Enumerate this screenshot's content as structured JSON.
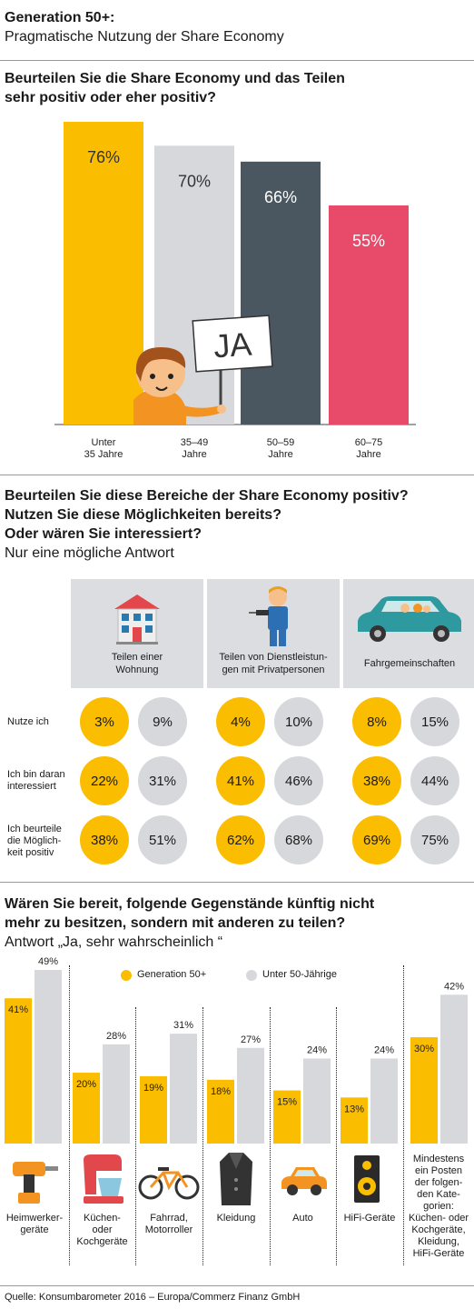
{
  "header": {
    "title": "Generation 50+:",
    "subtitle": "Pragmatische Nutzung der Share Economy"
  },
  "section1": {
    "question_line1": "Beurteilen Sie die Share Economy und das Teilen",
    "question_line2": "sehr positiv oder eher positiv?",
    "sign_text": "JA"
  },
  "section2": {
    "question_line1": "Beurteilen Sie diese Bereiche der Share Economy positiv?",
    "question_line2": "Nutzen Sie diese Möglichkeiten bereits?",
    "question_line3": "Oder wären Sie interessiert?",
    "note": "Nur eine mögliche Antwort",
    "categories": [
      {
        "line1": "Teilen einer",
        "line2": "Wohnung"
      },
      {
        "line1": "Teilen von Dienstleistun-",
        "line2": "gen mit Privatpersonen"
      },
      {
        "line1": "Fahrgemeinschaften",
        "line2": ""
      }
    ],
    "rows": [
      {
        "line1": "Nutze ich",
        "line2": "",
        "line3": ""
      },
      {
        "line1": "Ich bin daran",
        "line2": "interessiert",
        "line3": ""
      },
      {
        "line1": "Ich beurteile",
        "line2": "die Möglich-",
        "line3": "keit positiv"
      }
    ],
    "values": [
      [
        [
          "3%",
          "9%"
        ],
        [
          "4%",
          "10%"
        ],
        [
          "8%",
          "15%"
        ]
      ],
      [
        [
          "22%",
          "31%"
        ],
        [
          "41%",
          "46%"
        ],
        [
          "38%",
          "44%"
        ]
      ],
      [
        [
          "38%",
          "51%"
        ],
        [
          "62%",
          "68%"
        ],
        [
          "69%",
          "75%"
        ]
      ]
    ]
  },
  "section3": {
    "question_line1": "Wären Sie bereit, folgende Gegenstände künftig nicht",
    "question_line2": "mehr zu besitzen, sondern mit anderen zu teilen?",
    "note": "Antwort „Ja, sehr wahrscheinlich “",
    "legend": [
      "Generation 50+",
      "Unter 50-Jährige"
    ],
    "labels": [
      [
        "Heimwerker-",
        "geräte"
      ],
      [
        "Küchen-",
        "oder",
        "Kochgeräte"
      ],
      [
        "Fahrrad,",
        "Motorroller"
      ],
      [
        "Kleidung"
      ],
      [
        "Auto"
      ],
      [
        "HiFi-Geräte"
      ],
      [
        "Mindestens",
        "ein Posten",
        "der folgen-",
        "den Kate-",
        "gorien:",
        "Küchen- oder",
        "Kochgeräte,",
        "Kleidung,",
        "HiFi-Geräte"
      ]
    ]
  },
  "source": "Quelle: Konsumbarometer 2016 – Europa/Commerz Finanz GmbH",
  "colors": {
    "yellow": "#fbbd00",
    "light_gray": "#d7d8db",
    "dark_slate": "#4a5761",
    "pink": "#e84a6a"
  },
  "chart_data": [
    {
      "type": "bar",
      "categories": [
        "Unter 35 Jahre",
        "35–49 Jahre",
        "50–59 Jahre",
        "60–75 Jahre"
      ],
      "category_lines": [
        [
          "Unter",
          "35 Jahre"
        ],
        [
          "35–49",
          "Jahre"
        ],
        [
          "50–59",
          "Jahre"
        ],
        [
          "60–75",
          "Jahre"
        ]
      ],
      "values": [
        76,
        70,
        66,
        55
      ],
      "value_labels": [
        "76%",
        "70%",
        "66%",
        "55%"
      ],
      "colors": [
        "#fbbd00",
        "#d7d8db",
        "#4a5761",
        "#e84a6a"
      ],
      "label_colors": [
        "#333333",
        "#333333",
        "#ffffff",
        "#ffffff"
      ],
      "ylim": [
        0,
        100
      ]
    },
    {
      "type": "bar",
      "categories": [
        "Heimwerkergeräte",
        "Küchen- oder Kochgeräte",
        "Fahrrad, Motorroller",
        "Kleidung",
        "Auto",
        "HiFi-Geräte",
        "Mindestens ein Posten der folgenden Kategorien: Küchen- oder Kochgeräte, Kleidung, HiFi-Geräte"
      ],
      "series": [
        {
          "name": "Generation 50+",
          "values": [
            41,
            20,
            19,
            18,
            15,
            13,
            30
          ],
          "labels": [
            "41%",
            "20%",
            "19%",
            "18%",
            "15%",
            "13%",
            "30%"
          ]
        },
        {
          "name": "Unter 50-Jährige",
          "values": [
            49,
            28,
            31,
            27,
            24,
            24,
            42
          ],
          "labels": [
            "49%",
            "28%",
            "31%",
            "27%",
            "24%",
            "24%",
            "42%"
          ]
        }
      ],
      "ylim": [
        0,
        50
      ],
      "legend_position": "top"
    }
  ]
}
